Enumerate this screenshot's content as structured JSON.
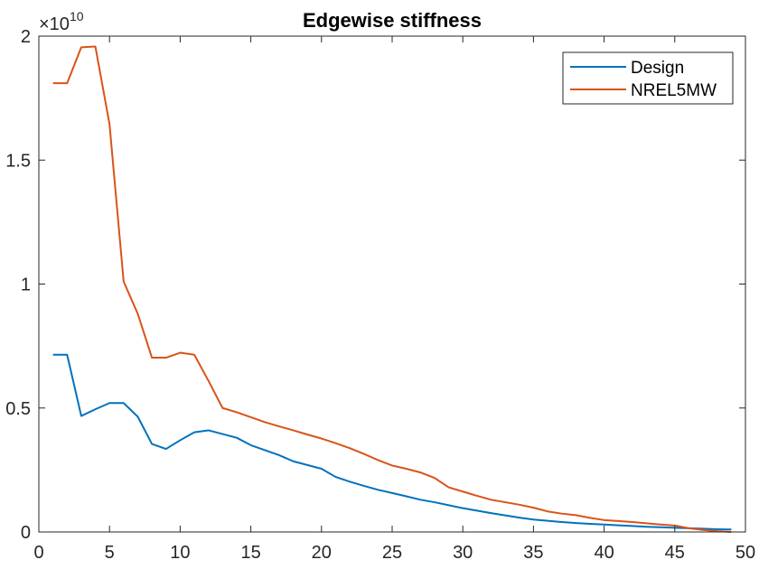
{
  "chart_data": {
    "type": "line",
    "title": "Edgewise stiffness",
    "xlabel": "",
    "ylabel": "",
    "xlim": [
      0,
      50
    ],
    "ylim": [
      0,
      2
    ],
    "y_exponent": "×10¹⁰",
    "y_exponent_base": "×10",
    "y_exponent_power": "10",
    "xticks": [
      0,
      5,
      10,
      15,
      20,
      25,
      30,
      35,
      40,
      45,
      50
    ],
    "xtick_labels": [
      "0",
      "5",
      "10",
      "15",
      "20",
      "25",
      "30",
      "35",
      "40",
      "45",
      "50"
    ],
    "yticks": [
      0,
      0.5,
      1,
      1.5,
      2
    ],
    "ytick_labels": [
      "0",
      "0.5",
      "1",
      "1.5",
      "2"
    ],
    "grid": false,
    "legend_position": "top-right",
    "x": [
      1,
      2,
      3,
      4,
      5,
      6,
      7,
      8,
      9,
      10,
      11,
      12,
      13,
      14,
      15,
      16,
      17,
      18,
      19,
      20,
      21,
      22,
      23,
      24,
      25,
      26,
      27,
      28,
      29,
      30,
      31,
      32,
      33,
      34,
      35,
      36,
      37,
      38,
      39,
      40,
      41,
      42,
      43,
      44,
      45,
      46,
      47,
      48,
      49
    ],
    "series": [
      {
        "name": "Design",
        "color": "#0072BD",
        "values": [
          0.715,
          0.715,
          0.468,
          0.495,
          0.52,
          0.52,
          0.465,
          0.355,
          0.335,
          0.37,
          0.402,
          0.41,
          0.395,
          0.38,
          0.35,
          0.33,
          0.31,
          0.285,
          0.27,
          0.255,
          0.222,
          0.203,
          0.186,
          0.17,
          0.157,
          0.144,
          0.13,
          0.12,
          0.108,
          0.096,
          0.086,
          0.076,
          0.067,
          0.058,
          0.05,
          0.045,
          0.04,
          0.036,
          0.033,
          0.03,
          0.027,
          0.024,
          0.021,
          0.019,
          0.017,
          0.015,
          0.013,
          0.011,
          0.01
        ]
      },
      {
        "name": "NREL5MW",
        "color": "#D95319",
        "values": [
          1.81,
          1.81,
          1.955,
          1.958,
          1.645,
          1.01,
          0.88,
          0.703,
          0.703,
          0.723,
          0.715,
          0.61,
          0.5,
          0.483,
          0.463,
          0.443,
          0.426,
          0.41,
          0.393,
          0.377,
          0.358,
          0.338,
          0.315,
          0.29,
          0.268,
          0.255,
          0.24,
          0.218,
          0.18,
          0.163,
          0.146,
          0.13,
          0.12,
          0.11,
          0.098,
          0.083,
          0.074,
          0.068,
          0.057,
          0.048,
          0.044,
          0.04,
          0.035,
          0.03,
          0.026,
          0.015,
          0.008,
          0.003,
          0.0
        ]
      }
    ]
  }
}
